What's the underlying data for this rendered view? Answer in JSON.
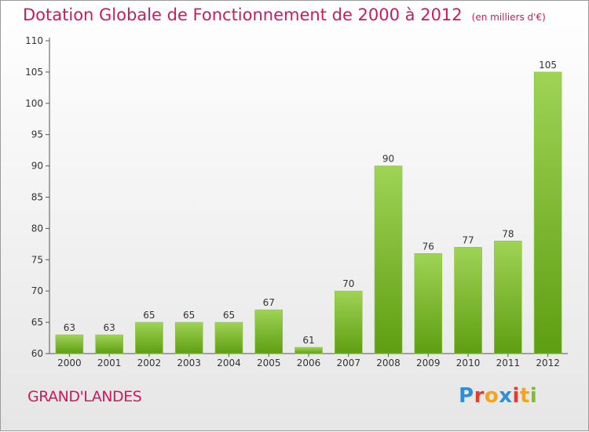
{
  "chart_data": {
    "type": "bar",
    "title": "Dotation Globale de Fonctionnement de 2000 à 2012",
    "subtitle": "(en milliers d'€)",
    "categories": [
      "2000",
      "2001",
      "2002",
      "2003",
      "2004",
      "2005",
      "2006",
      "2007",
      "2008",
      "2009",
      "2010",
      "2011",
      "2012"
    ],
    "values": [
      63,
      63,
      65,
      65,
      65,
      67,
      61,
      70,
      90,
      76,
      77,
      78,
      105
    ],
    "ylim": [
      60,
      110
    ],
    "yticks": [
      60,
      65,
      70,
      75,
      80,
      85,
      90,
      95,
      100,
      105,
      110
    ],
    "grid": false,
    "colors": {
      "bar_light": "#9fd355",
      "bar_dark": "#5e9e12",
      "title": "#cc1a5e",
      "axis": "#555555",
      "text": "#333333"
    }
  },
  "footer": {
    "commune": "GRAND'LANDES",
    "logo": "Proxiti"
  }
}
